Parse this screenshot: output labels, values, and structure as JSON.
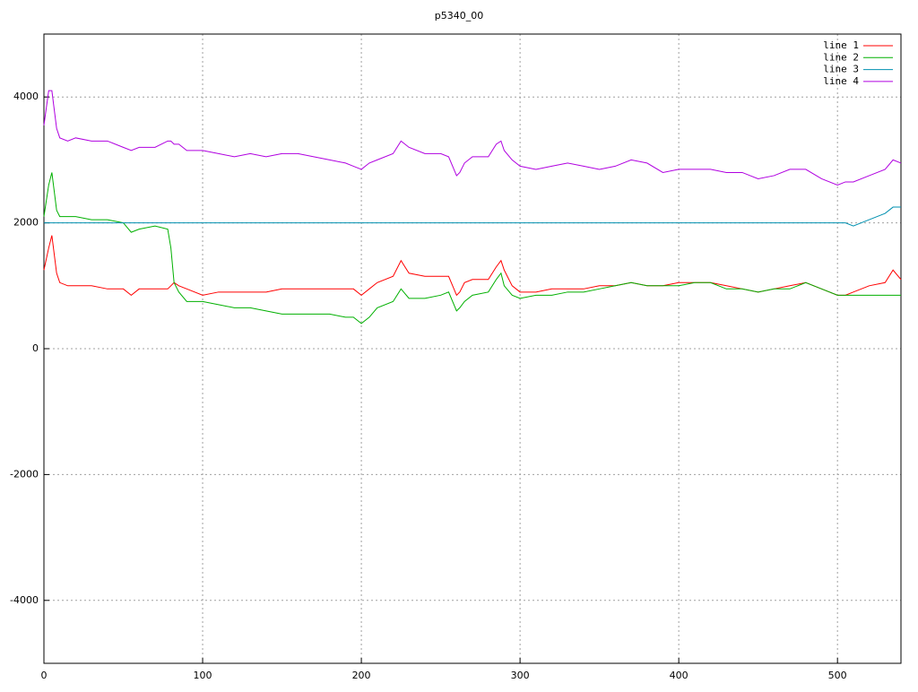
{
  "chart_data": {
    "type": "line",
    "title": "p5340_00",
    "x": [
      0,
      3,
      5,
      8,
      10,
      15,
      20,
      30,
      40,
      50,
      55,
      60,
      70,
      78,
      80,
      82,
      85,
      90,
      100,
      110,
      120,
      130,
      140,
      150,
      160,
      170,
      180,
      190,
      195,
      200,
      205,
      210,
      220,
      225,
      230,
      240,
      250,
      255,
      260,
      262,
      265,
      270,
      280,
      285,
      288,
      290,
      295,
      300,
      310,
      320,
      330,
      340,
      350,
      360,
      370,
      380,
      390,
      400,
      410,
      420,
      430,
      440,
      450,
      460,
      470,
      480,
      490,
      500,
      505,
      510,
      520,
      530,
      535,
      540
    ],
    "series": [
      {
        "name": "line 1",
        "color": "#ff0000",
        "values": [
          1250,
          1600,
          1800,
          1200,
          1050,
          1000,
          1000,
          1000,
          950,
          950,
          850,
          950,
          950,
          950,
          1000,
          1050,
          1000,
          950,
          850,
          900,
          900,
          900,
          900,
          950,
          950,
          950,
          950,
          950,
          950,
          850,
          950,
          1050,
          1150,
          1400,
          1200,
          1150,
          1150,
          1150,
          850,
          900,
          1050,
          1100,
          1100,
          1300,
          1400,
          1250,
          1000,
          900,
          900,
          950,
          950,
          950,
          1000,
          1000,
          1050,
          1000,
          1000,
          1050,
          1050,
          1050,
          1000,
          950,
          900,
          950,
          1000,
          1050,
          950,
          850,
          850,
          900,
          1000,
          1050,
          1250,
          1100
        ]
      },
      {
        "name": "line 2",
        "color": "#00b000",
        "values": [
          2100,
          2600,
          2800,
          2200,
          2100,
          2100,
          2100,
          2050,
          2050,
          2000,
          1850,
          1900,
          1950,
          1900,
          1600,
          1050,
          900,
          750,
          750,
          700,
          650,
          650,
          600,
          550,
          550,
          550,
          550,
          500,
          500,
          400,
          500,
          650,
          750,
          950,
          800,
          800,
          850,
          900,
          600,
          650,
          750,
          850,
          900,
          1100,
          1200,
          1000,
          850,
          800,
          850,
          850,
          900,
          900,
          950,
          1000,
          1050,
          1000,
          1000,
          1000,
          1050,
          1050,
          950,
          950,
          900,
          950,
          950,
          1050,
          950,
          850,
          850,
          850,
          850,
          850,
          850,
          850
        ]
      },
      {
        "name": "line 3",
        "color": "#0090b0",
        "values": [
          2000,
          2000,
          2000,
          2000,
          2000,
          2000,
          2000,
          2000,
          2000,
          2000,
          2000,
          2000,
          2000,
          2000,
          2000,
          2000,
          2000,
          2000,
          2000,
          2000,
          2000,
          2000,
          2000,
          2000,
          2000,
          2000,
          2000,
          2000,
          2000,
          2000,
          2000,
          2000,
          2000,
          2000,
          2000,
          2000,
          2000,
          2000,
          2000,
          2000,
          2000,
          2000,
          2000,
          2000,
          2000,
          2000,
          2000,
          2000,
          2000,
          2000,
          2000,
          2000,
          2000,
          2000,
          2000,
          2000,
          2000,
          2000,
          2000,
          2000,
          2000,
          2000,
          2000,
          2000,
          2000,
          2000,
          2000,
          2000,
          2000,
          1950,
          2050,
          2150,
          2250,
          2250
        ]
      },
      {
        "name": "line 4",
        "color": "#b000e0",
        "values": [
          3550,
          4100,
          4100,
          3500,
          3350,
          3300,
          3350,
          3300,
          3300,
          3200,
          3150,
          3200,
          3200,
          3300,
          3300,
          3250,
          3250,
          3150,
          3150,
          3100,
          3050,
          3100,
          3050,
          3100,
          3100,
          3050,
          3000,
          2950,
          2900,
          2850,
          2950,
          3000,
          3100,
          3300,
          3200,
          3100,
          3100,
          3050,
          2750,
          2800,
          2950,
          3050,
          3050,
          3250,
          3300,
          3150,
          3000,
          2900,
          2850,
          2900,
          2950,
          2900,
          2850,
          2900,
          3000,
          2950,
          2800,
          2850,
          2850,
          2850,
          2800,
          2800,
          2700,
          2750,
          2850,
          2850,
          2700,
          2600,
          2650,
          2650,
          2750,
          2850,
          3000,
          2950
        ]
      }
    ],
    "xlim": [
      0,
      540
    ],
    "xticks": [
      0,
      100,
      200,
      300,
      400,
      500
    ],
    "ylim": [
      -5000,
      5000
    ],
    "yticks": [
      -4000,
      -2000,
      0,
      2000,
      4000
    ],
    "grid": true,
    "legend": "top-right"
  }
}
